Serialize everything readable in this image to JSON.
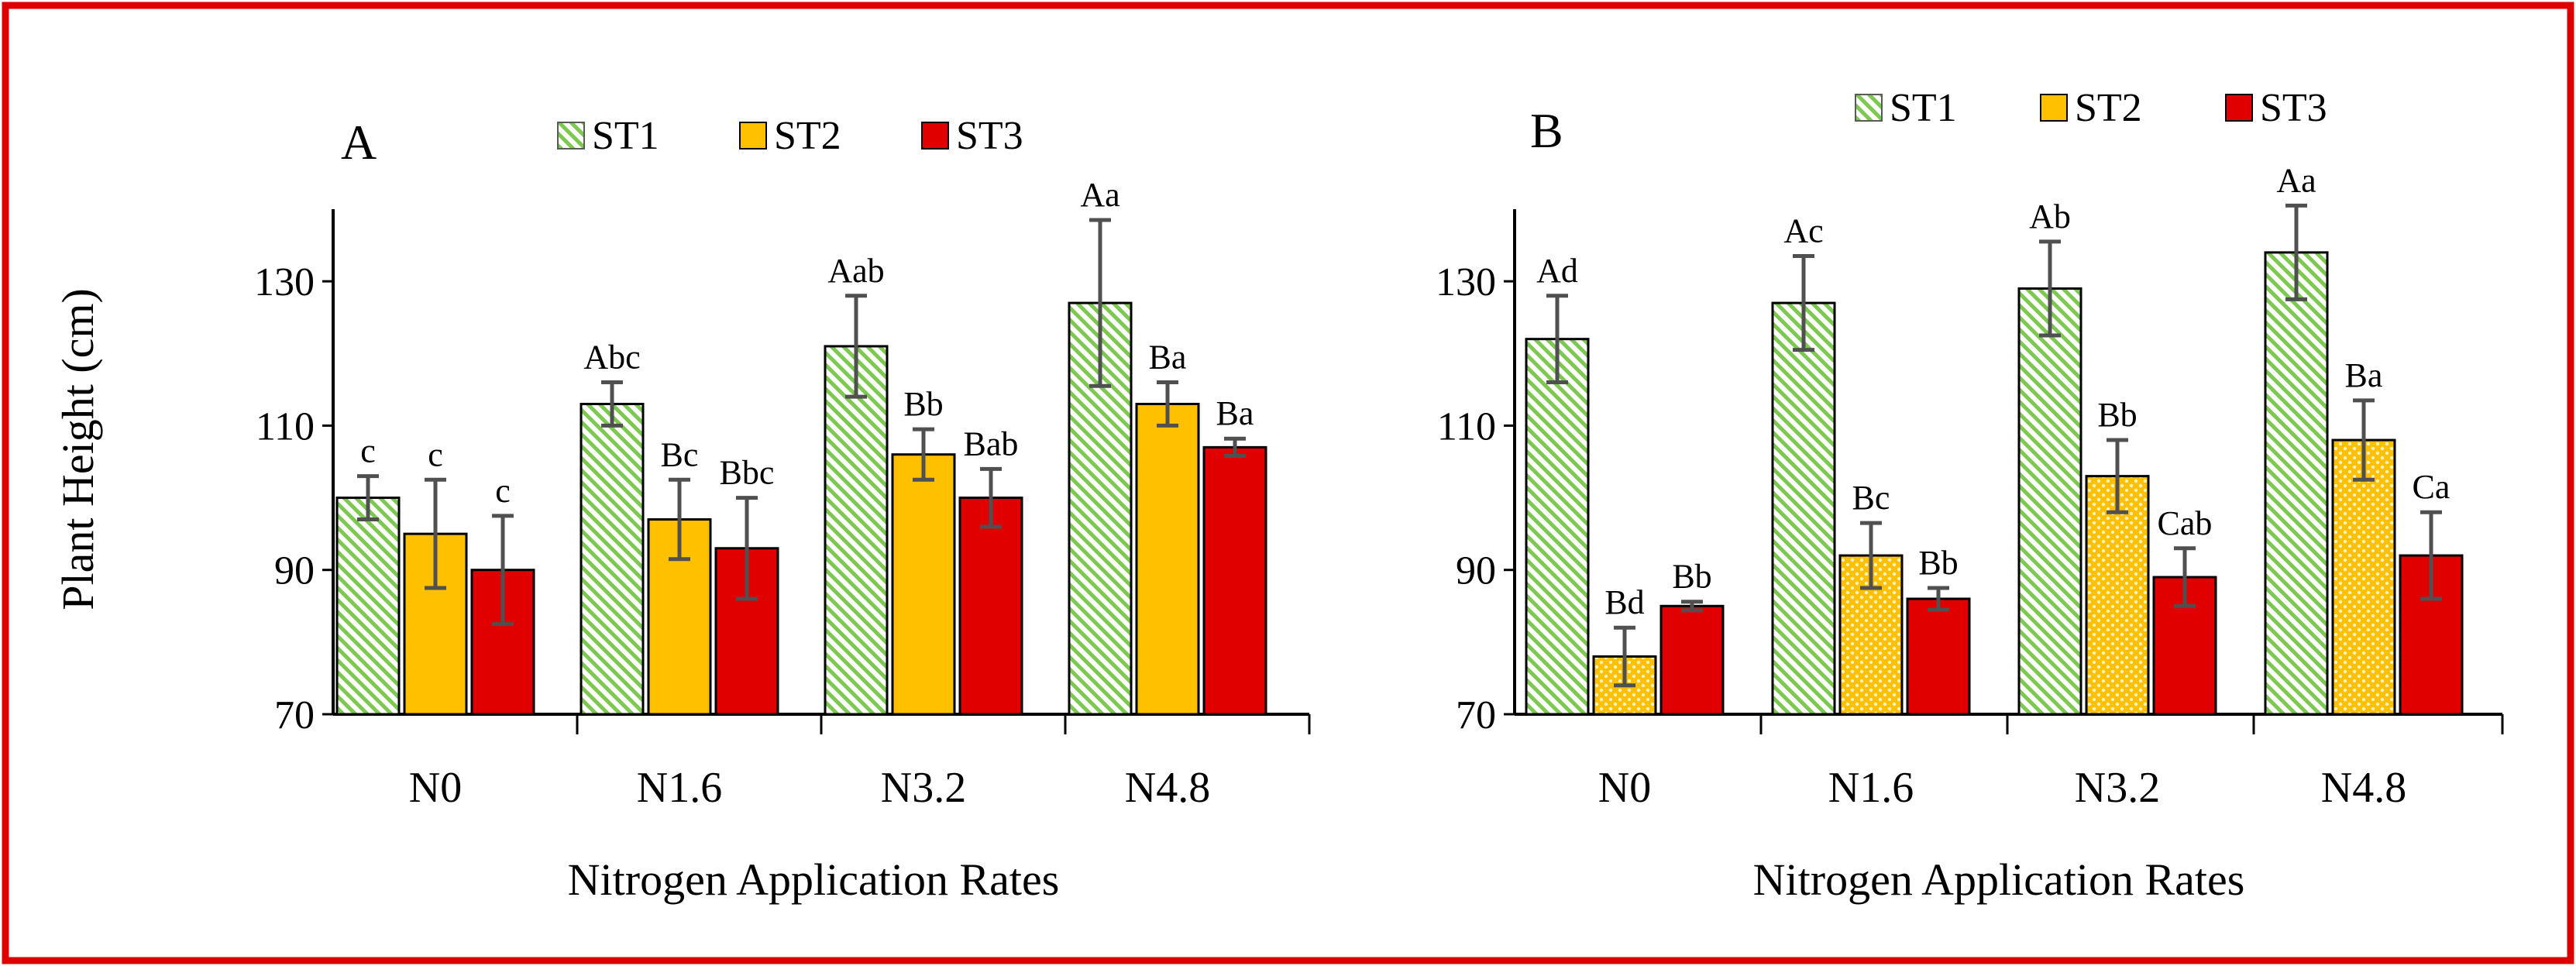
{
  "colors": {
    "frame": "#dd0000",
    "st1_stripe": "#7cc850",
    "st2_fill": "#ffc000",
    "st2_dots": "#fff3c4",
    "st3_fill": "#e00000",
    "error_bar": "#505050",
    "axis": "#000000"
  },
  "chart_data": [
    {
      "type": "bar",
      "panel": "A",
      "categories": [
        "N0",
        "N1.6",
        "N3.2",
        "N4.8"
      ],
      "xlabel": "Nitrogen Application Rates",
      "ylabel": "Plant Height (cm)",
      "ylim": [
        70,
        140
      ],
      "yticks": [
        70,
        90,
        110,
        130
      ],
      "legend": [
        "ST1",
        "ST2",
        "ST3"
      ],
      "series": [
        {
          "name": "ST1",
          "values": [
            100,
            113,
            121,
            127
          ],
          "errors": [
            3,
            3,
            7,
            11.5
          ],
          "labels": [
            "c",
            "Abc",
            "Aab",
            "Aa"
          ]
        },
        {
          "name": "ST2",
          "values": [
            95,
            97,
            106,
            113
          ],
          "errors": [
            7.5,
            5.5,
            3.5,
            3
          ],
          "labels": [
            "c",
            "Bc",
            "Bb",
            "Ba"
          ]
        },
        {
          "name": "ST3",
          "values": [
            90,
            93,
            100,
            107
          ],
          "errors": [
            7.5,
            7,
            4,
            1.2
          ],
          "labels": [
            "c",
            "Bbc",
            "Bab",
            "Ba"
          ]
        }
      ]
    },
    {
      "type": "bar",
      "panel": "B",
      "categories": [
        "N0",
        "N1.6",
        "N3.2",
        "N4.8"
      ],
      "xlabel": "Nitrogen Application Rates",
      "ylabel": "",
      "ylim": [
        70,
        140
      ],
      "yticks": [
        70,
        90,
        110,
        130
      ],
      "legend": [
        "ST1",
        "ST2",
        "ST3"
      ],
      "series": [
        {
          "name": "ST1",
          "values": [
            122,
            127,
            129,
            134
          ],
          "errors": [
            6,
            6.5,
            6.5,
            6.5
          ],
          "labels": [
            "Ad",
            "Ac",
            "Ab",
            "Aa"
          ]
        },
        {
          "name": "ST2",
          "values": [
            78,
            92,
            103,
            108
          ],
          "errors": [
            4,
            4.5,
            5,
            5.5
          ],
          "labels": [
            "Bd",
            "Bc",
            "Bb",
            "Ba"
          ]
        },
        {
          "name": "ST3",
          "values": [
            85,
            86,
            89,
            92
          ],
          "errors": [
            0.6,
            1.5,
            4,
            6
          ],
          "labels": [
            "Bb",
            "Bb",
            "Cab",
            "Ca"
          ]
        }
      ]
    }
  ]
}
